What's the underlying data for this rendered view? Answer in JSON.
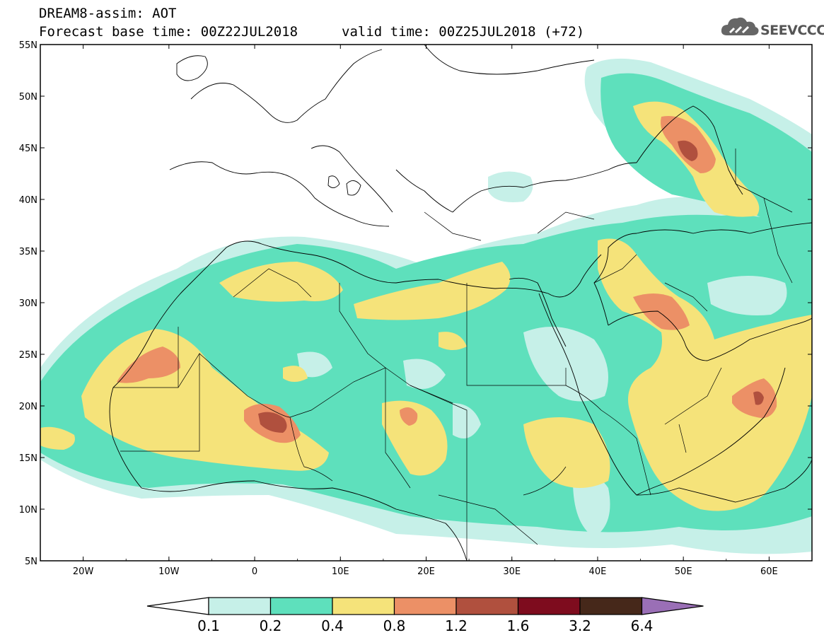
{
  "header": {
    "line1": "DREAM8-assim: AOT",
    "line2": "Forecast base time: 00Z22JUL2018",
    "line3": "valid time: 00Z25JUL2018 (+72)"
  },
  "logo": {
    "text": "SEEVCCC",
    "icon": "cloud-icon"
  },
  "axes": {
    "lon_range": [
      -25,
      65
    ],
    "lat_range": [
      5,
      55
    ],
    "lon_ticks": [
      {
        "v": -20,
        "label": "20W"
      },
      {
        "v": -10,
        "label": "10W"
      },
      {
        "v": 0,
        "label": "0"
      },
      {
        "v": 10,
        "label": "10E"
      },
      {
        "v": 20,
        "label": "20E"
      },
      {
        "v": 30,
        "label": "30E"
      },
      {
        "v": 40,
        "label": "40E"
      },
      {
        "v": 50,
        "label": "50E"
      },
      {
        "v": 60,
        "label": "60E"
      }
    ],
    "lat_ticks": [
      {
        "v": 55,
        "label": "55N"
      },
      {
        "v": 50,
        "label": "50N"
      },
      {
        "v": 45,
        "label": "45N"
      },
      {
        "v": 40,
        "label": "40N"
      },
      {
        "v": 35,
        "label": "35N"
      },
      {
        "v": 30,
        "label": "30N"
      },
      {
        "v": 25,
        "label": "25N"
      },
      {
        "v": 20,
        "label": "20N"
      },
      {
        "v": 15,
        "label": "15N"
      },
      {
        "v": 10,
        "label": "10N"
      },
      {
        "v": 5,
        "label": "5N"
      }
    ]
  },
  "colorbar": {
    "labels": [
      "0.1",
      "0.2",
      "0.4",
      "0.8",
      "1.2",
      "1.6",
      "3.2",
      "6.4"
    ],
    "colors": [
      "#ffffff",
      "#c6f0e8",
      "#5ee0bc",
      "#f5e37a",
      "#ec9066",
      "#b0503e",
      "#7e0c1e",
      "#46281a",
      "#9a6fb6"
    ]
  }
}
